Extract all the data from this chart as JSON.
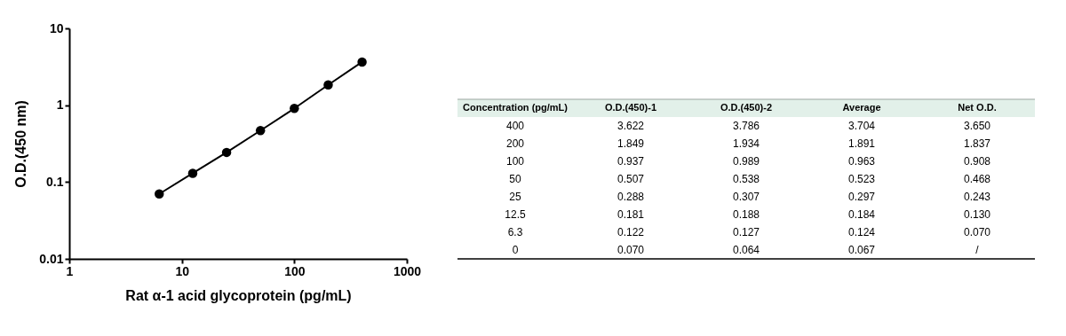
{
  "chart_data": [
    {
      "type": "line",
      "xlabel": "Rat α-1 acid glycoprotein (pg/mL)",
      "ylabel": "O.D.(450 nm)",
      "log": "xy",
      "marker": "circle",
      "line_style": "solid",
      "grid": false,
      "x": [
        6.3,
        12.5,
        25,
        50,
        100,
        200,
        400
      ],
      "series": [
        {
          "color": "#000000",
          "values": [
            0.07,
            0.13,
            0.243,
            0.468,
            0.908,
            1.837,
            3.65
          ]
        }
      ],
      "xlim": [
        1,
        1000
      ],
      "xticks": [
        1,
        10,
        100,
        1000
      ],
      "ylim": [
        0.01,
        10
      ],
      "yticks": [
        0.01,
        0.1,
        1,
        10
      ]
    },
    {
      "type": "other",
      "categories": [
        "Concentration (pg/mL)",
        "O.D.(450)-1",
        "O.D.(450)-2",
        "Average",
        "Net O.D."
      ],
      "cell_labels": [
        [
          "400",
          "3.622",
          "3.786",
          "3.704",
          "3.650"
        ],
        [
          "200",
          "1.849",
          "1.934",
          "1.891",
          "1.837"
        ],
        [
          "100",
          "0.937",
          "0.989",
          "0.963",
          "0.908"
        ],
        [
          "50",
          "0.507",
          "0.538",
          "0.523",
          "0.468"
        ],
        [
          "25",
          "0.288",
          "0.307",
          "0.297",
          "0.243"
        ],
        [
          "12.5",
          "0.181",
          "0.188",
          "0.184",
          "0.130"
        ],
        [
          "6.3",
          "0.122",
          "0.127",
          "0.124",
          "0.070"
        ],
        [
          "0",
          "0.070",
          "0.064",
          "0.067",
          "/"
        ]
      ]
    }
  ]
}
